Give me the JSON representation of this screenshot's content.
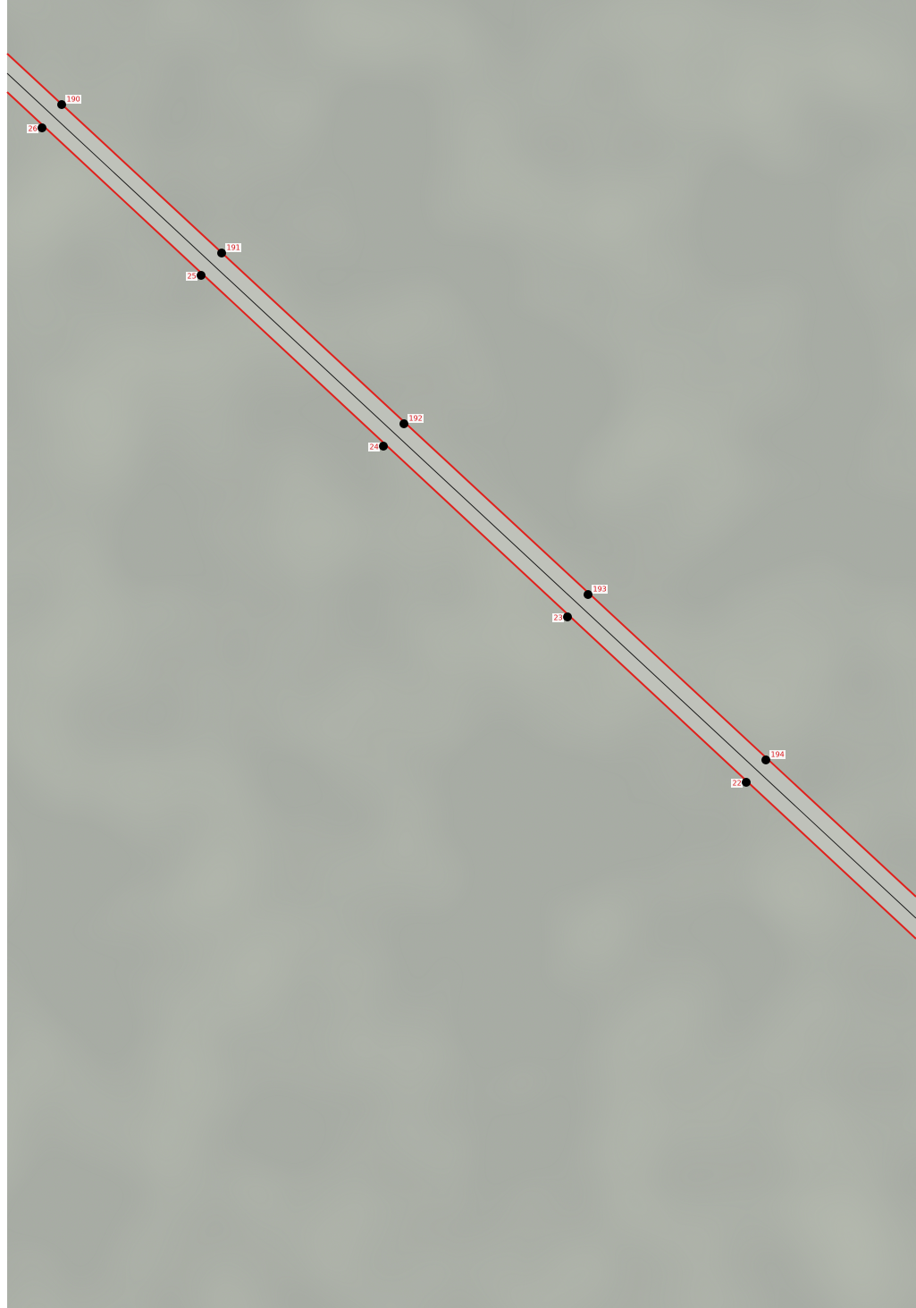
{
  "points": {
    "north": [
      {
        "label": "190"
      },
      {
        "label": "191"
      },
      {
        "label": "192"
      },
      {
        "label": "193"
      },
      {
        "label": "194"
      }
    ],
    "south": [
      {
        "label": "26"
      },
      {
        "label": "25"
      },
      {
        "label": "24"
      },
      {
        "label": "23"
      },
      {
        "label": "22"
      }
    ]
  }
}
